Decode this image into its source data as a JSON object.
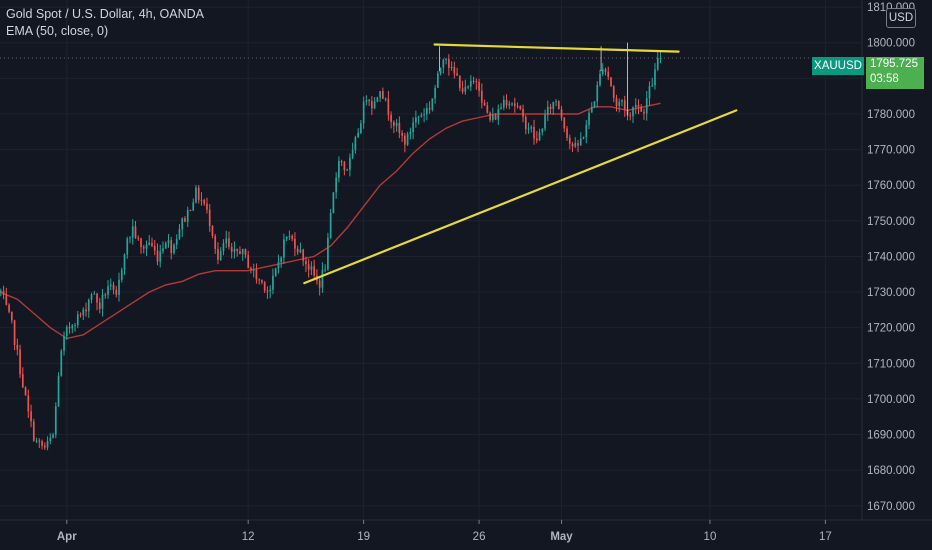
{
  "legend": {
    "title": "Gold Spot / U.S. Dollar, 4h, OANDA",
    "indicator": "EMA (50, close, 0)"
  },
  "currency_button": "USD",
  "price_label": {
    "symbol": "XAUUSD",
    "price": "1795.725",
    "countdown": "03:58"
  },
  "colors": {
    "background": "#131722",
    "grid": "#1e2230",
    "up": "#26a69a",
    "down": "#ef5350",
    "ema": "#b33a36",
    "trendline": "#e6d93a",
    "label_green": "#4caf50",
    "tag_teal": "#089981"
  },
  "chart_data": {
    "type": "candlestick",
    "instrument": "XAUUSD",
    "timeframe": "4h",
    "y_ticks": [
      "1810.000",
      "1800.000",
      "1790.000",
      "1780.000",
      "1770.000",
      "1760.000",
      "1750.000",
      "1740.000",
      "1730.000",
      "1720.000",
      "1710.000",
      "1700.000",
      "1690.000",
      "1680.000",
      "1670.000"
    ],
    "y_tick_values": [
      1810,
      1800,
      1790,
      1780,
      1770,
      1760,
      1750,
      1740,
      1730,
      1720,
      1710,
      1700,
      1690,
      1680,
      1670
    ],
    "ylim": [
      1666,
      1812
    ],
    "x_ticks": [
      {
        "label": "Apr",
        "day": 0
      },
      {
        "label": "12",
        "day": 11
      },
      {
        "label": "19",
        "day": 18
      },
      {
        "label": "26",
        "day": 25
      },
      {
        "label": "May",
        "day": 30
      },
      {
        "label": "10",
        "day": 39
      },
      {
        "label": "17",
        "day": 46
      }
    ],
    "x_tick_bold": [
      "Apr",
      "May"
    ],
    "xlim_days": [
      -4.05,
      48.22
    ],
    "current_price": 1795.725,
    "close_anchors": [
      [
        -4.0,
        1730
      ],
      [
        -3.3,
        1720
      ],
      [
        -2.7,
        1705
      ],
      [
        -2.3,
        1695
      ],
      [
        -1.9,
        1688
      ],
      [
        -1.3,
        1686
      ],
      [
        -0.8,
        1690
      ],
      [
        -0.45,
        1710
      ],
      [
        -0.1,
        1718
      ],
      [
        0.4,
        1722
      ],
      [
        1.0,
        1724
      ],
      [
        1.5,
        1730
      ],
      [
        2.0,
        1726
      ],
      [
        2.5,
        1732
      ],
      [
        3.0,
        1728
      ],
      [
        3.5,
        1742
      ],
      [
        4.0,
        1748
      ],
      [
        4.5,
        1742
      ],
      [
        5.0,
        1744
      ],
      [
        5.5,
        1740
      ],
      [
        6.0,
        1745
      ],
      [
        6.4,
        1742
      ],
      [
        6.8,
        1748
      ],
      [
        7.3,
        1752
      ],
      [
        7.8,
        1758
      ],
      [
        8.3,
        1755
      ],
      [
        8.8,
        1748
      ],
      [
        9.2,
        1738
      ],
      [
        9.6,
        1745
      ],
      [
        10.0,
        1740
      ],
      [
        10.5,
        1742
      ],
      [
        11.0,
        1738
      ],
      [
        11.5,
        1734
      ],
      [
        12.0,
        1732
      ],
      [
        12.3,
        1730
      ],
      [
        12.8,
        1738
      ],
      [
        13.3,
        1746
      ],
      [
        13.8,
        1744
      ],
      [
        14.3,
        1740
      ],
      [
        14.8,
        1736
      ],
      [
        15.3,
        1732
      ],
      [
        15.7,
        1738
      ],
      [
        16.1,
        1755
      ],
      [
        16.5,
        1768
      ],
      [
        16.9,
        1764
      ],
      [
        17.3,
        1768
      ],
      [
        17.8,
        1778
      ],
      [
        18.2,
        1786
      ],
      [
        18.6,
        1782
      ],
      [
        19.0,
        1788
      ],
      [
        19.4,
        1782
      ],
      [
        19.8,
        1778
      ],
      [
        20.2,
        1774
      ],
      [
        20.6,
        1772
      ],
      [
        21.0,
        1778
      ],
      [
        21.5,
        1780
      ],
      [
        22.0,
        1782
      ],
      [
        22.5,
        1790
      ],
      [
        22.9,
        1798
      ],
      [
        23.3,
        1792
      ],
      [
        23.7,
        1790
      ],
      [
        24.1,
        1786
      ],
      [
        24.5,
        1788
      ],
      [
        24.9,
        1790
      ],
      [
        25.3,
        1782
      ],
      [
        25.7,
        1778
      ],
      [
        26.1,
        1780
      ],
      [
        26.5,
        1784
      ],
      [
        26.9,
        1784
      ],
      [
        27.3,
        1782
      ],
      [
        27.7,
        1778
      ],
      [
        28.1,
        1776
      ],
      [
        28.5,
        1772
      ],
      [
        28.9,
        1778
      ],
      [
        29.3,
        1782
      ],
      [
        29.7,
        1784
      ],
      [
        30.1,
        1778
      ],
      [
        30.5,
        1772
      ],
      [
        30.9,
        1770
      ],
      [
        31.3,
        1774
      ],
      [
        31.7,
        1780
      ],
      [
        32.1,
        1786
      ],
      [
        32.5,
        1794
      ],
      [
        32.9,
        1790
      ],
      [
        33.3,
        1782
      ],
      [
        33.7,
        1784
      ],
      [
        34.1,
        1778
      ],
      [
        34.5,
        1784
      ],
      [
        34.9,
        1780
      ],
      [
        35.3,
        1786
      ],
      [
        35.7,
        1792
      ],
      [
        36.0,
        1795.7
      ]
    ],
    "highlight_wicks": [
      {
        "day": 22.6,
        "high": 1799
      },
      {
        "day": 32.4,
        "high": 1799
      },
      {
        "day": 34.0,
        "high": 1800
      }
    ],
    "ema_points": [
      [
        -4.05,
        1730
      ],
      [
        -3.0,
        1728
      ],
      [
        -2.0,
        1724
      ],
      [
        -1.0,
        1720
      ],
      [
        0.0,
        1717
      ],
      [
        1.0,
        1718
      ],
      [
        2.0,
        1721
      ],
      [
        3.0,
        1724
      ],
      [
        4.0,
        1727
      ],
      [
        5.0,
        1730
      ],
      [
        6.0,
        1732
      ],
      [
        7.0,
        1733
      ],
      [
        8.0,
        1735
      ],
      [
        9.0,
        1736
      ],
      [
        10.0,
        1736
      ],
      [
        11.0,
        1736
      ],
      [
        12.0,
        1737
      ],
      [
        13.0,
        1738
      ],
      [
        14.0,
        1739
      ],
      [
        15.0,
        1740
      ],
      [
        16.0,
        1743
      ],
      [
        17.0,
        1748
      ],
      [
        18.0,
        1754
      ],
      [
        19.0,
        1760
      ],
      [
        20.0,
        1764
      ],
      [
        21.0,
        1769
      ],
      [
        22.0,
        1773
      ],
      [
        23.0,
        1776
      ],
      [
        24.0,
        1778
      ],
      [
        25.0,
        1779
      ],
      [
        26.0,
        1780
      ],
      [
        27.0,
        1780
      ],
      [
        28.0,
        1780
      ],
      [
        29.0,
        1780
      ],
      [
        30.0,
        1780
      ],
      [
        31.0,
        1780
      ],
      [
        32.0,
        1782
      ],
      [
        33.0,
        1782
      ],
      [
        34.0,
        1781
      ],
      [
        35.0,
        1782
      ],
      [
        36.0,
        1783
      ]
    ],
    "trendlines": [
      {
        "name": "resistance",
        "from": [
          22.3,
          1799.5
        ],
        "to": [
          37.1,
          1797.5
        ]
      },
      {
        "name": "support",
        "from": [
          14.4,
          1732.5
        ],
        "to": [
          40.6,
          1781
        ]
      }
    ]
  }
}
